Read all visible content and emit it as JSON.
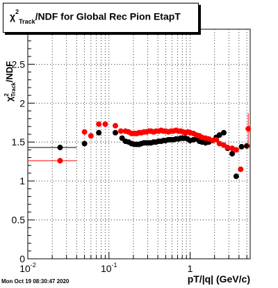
{
  "title": {
    "chi": "χ",
    "sup": "2",
    "sub": "Track",
    "rest": "/NDF for Global Rec Pion EtapT"
  },
  "timestamp": "Mon Oct 19 08:30:47 2020",
  "chart_data": {
    "type": "scatter",
    "title": "χ²_Track/NDF for Global Rec Pion EtapT",
    "xlabel": "pT/|q| (GeV/c)",
    "ylabel": "χ²_Track/NDF",
    "xscale": "log",
    "xlim": [
      0.01,
      5.5
    ],
    "ylim": [
      0,
      2.95
    ],
    "grid": true,
    "x_ticks": [
      {
        "value": 0.01,
        "base": "10",
        "exp": "-2"
      },
      {
        "value": 0.1,
        "base": "10",
        "exp": "-1"
      },
      {
        "value": 1,
        "base": "1",
        "exp": ""
      }
    ],
    "y_ticks": [
      "0",
      "0.5",
      "1",
      "1.5",
      "2",
      "2.5"
    ],
    "series": [
      {
        "color": "#000000",
        "points": [
          [
            0.025,
            1.43
          ],
          [
            0.05,
            1.48
          ],
          [
            0.075,
            1.62
          ],
          [
            0.12,
            1.62
          ],
          [
            0.145,
            1.55
          ],
          [
            0.16,
            1.51
          ],
          [
            0.175,
            1.5
          ],
          [
            0.19,
            1.48
          ],
          [
            0.205,
            1.47
          ],
          [
            0.22,
            1.47
          ],
          [
            0.235,
            1.47
          ],
          [
            0.25,
            1.48
          ],
          [
            0.27,
            1.49
          ],
          [
            0.29,
            1.49
          ],
          [
            0.31,
            1.49
          ],
          [
            0.33,
            1.49
          ],
          [
            0.355,
            1.5
          ],
          [
            0.38,
            1.5
          ],
          [
            0.41,
            1.51
          ],
          [
            0.44,
            1.51
          ],
          [
            0.47,
            1.52
          ],
          [
            0.5,
            1.52
          ],
          [
            0.54,
            1.53
          ],
          [
            0.58,
            1.53
          ],
          [
            0.62,
            1.53
          ],
          [
            0.67,
            1.54
          ],
          [
            0.72,
            1.54
          ],
          [
            0.77,
            1.55
          ],
          [
            0.82,
            1.55
          ],
          [
            0.87,
            1.55
          ],
          [
            0.93,
            1.54
          ],
          [
            1.0,
            1.52
          ],
          [
            1.1,
            1.53
          ],
          [
            1.2,
            1.54
          ],
          [
            1.3,
            1.51
          ],
          [
            1.4,
            1.5
          ],
          [
            1.55,
            1.49
          ],
          [
            1.7,
            1.5
          ],
          [
            1.9,
            1.52
          ],
          [
            2.1,
            1.56
          ],
          [
            2.3,
            1.59
          ],
          [
            2.6,
            1.62
          ],
          [
            2.9,
            1.42
          ],
          [
            3.3,
            1.35
          ],
          [
            3.7,
            1.06
          ],
          [
            4.3,
            1.44
          ],
          [
            5.0,
            1.45
          ]
        ],
        "xerr": [
          [
            0.01,
            0.04
          ]
        ]
      },
      {
        "color": "#ff0000",
        "points": [
          [
            0.025,
            1.26
          ],
          [
            0.05,
            1.63
          ],
          [
            0.06,
            1.58
          ],
          [
            0.075,
            1.73
          ],
          [
            0.09,
            1.73
          ],
          [
            0.12,
            1.71
          ],
          [
            0.14,
            1.64
          ],
          [
            0.16,
            1.64
          ],
          [
            0.175,
            1.63
          ],
          [
            0.19,
            1.61
          ],
          [
            0.205,
            1.61
          ],
          [
            0.22,
            1.61
          ],
          [
            0.235,
            1.62
          ],
          [
            0.25,
            1.62
          ],
          [
            0.27,
            1.63
          ],
          [
            0.29,
            1.63
          ],
          [
            0.31,
            1.64
          ],
          [
            0.33,
            1.64
          ],
          [
            0.355,
            1.63
          ],
          [
            0.38,
            1.64
          ],
          [
            0.41,
            1.64
          ],
          [
            0.44,
            1.65
          ],
          [
            0.47,
            1.64
          ],
          [
            0.5,
            1.64
          ],
          [
            0.54,
            1.63
          ],
          [
            0.58,
            1.64
          ],
          [
            0.62,
            1.64
          ],
          [
            0.67,
            1.65
          ],
          [
            0.72,
            1.64
          ],
          [
            0.77,
            1.64
          ],
          [
            0.82,
            1.63
          ],
          [
            0.87,
            1.62
          ],
          [
            0.93,
            1.63
          ],
          [
            1.0,
            1.62
          ],
          [
            1.1,
            1.61
          ],
          [
            1.2,
            1.59
          ],
          [
            1.3,
            1.58
          ],
          [
            1.4,
            1.56
          ],
          [
            1.55,
            1.55
          ],
          [
            1.7,
            1.54
          ],
          [
            1.9,
            1.52
          ],
          [
            2.1,
            1.53
          ],
          [
            2.3,
            1.48
          ],
          [
            2.6,
            1.46
          ],
          [
            2.9,
            1.43
          ],
          [
            3.3,
            1.42
          ],
          [
            3.7,
            1.4
          ],
          [
            4.2,
            1.15
          ],
          [
            5.2,
            1.67
          ]
        ]
      }
    ]
  }
}
